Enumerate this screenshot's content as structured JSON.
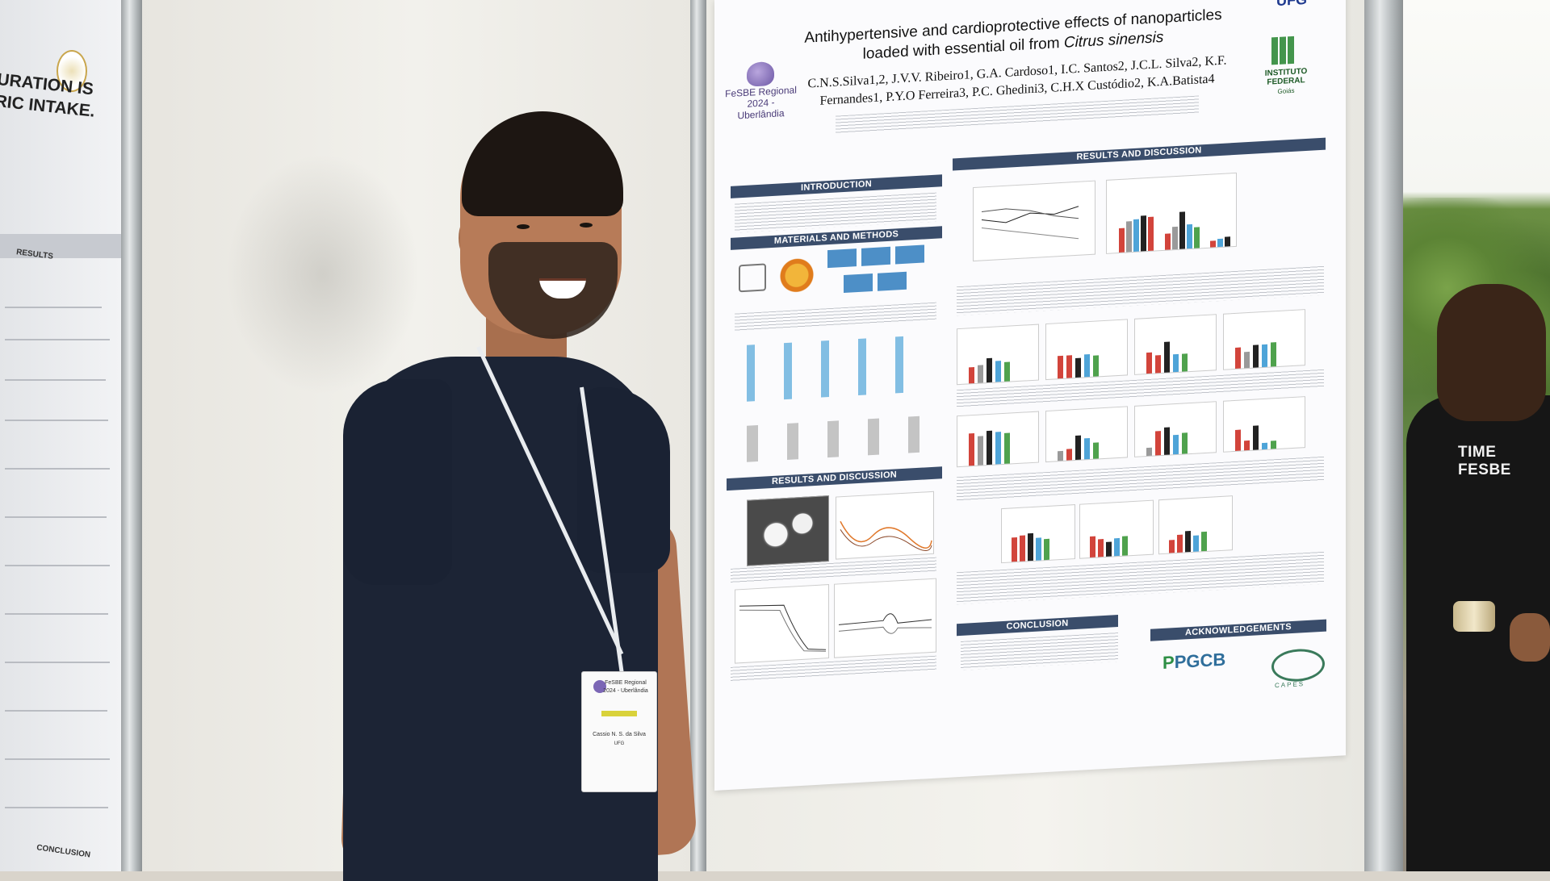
{
  "left_poster": {
    "title": "URATION IS\nRIC INTAKE.",
    "section_results": "RESULTS",
    "section_conclusion": "CONCLUSION"
  },
  "poster": {
    "title_line1": "Antihypertensive and cardioprotective effects of nanoparticles",
    "title_line2_prefix": "loaded with essential oil from ",
    "title_line2_italic": "Citrus sinensis",
    "authors_line1": "C.N.S.Silva1,2, J.V.V. Ribeiro1, G.A. Cardoso1, I.C. Santos2, J.C.L. Silva2, K.F.",
    "authors_line2": "Fernandes1, P.Y.O Ferreira3, P.C. Ghedini3, C.H.X Custódio2, K.A.Batista4",
    "event_name": "FeSBE Regional",
    "event_year_place": "2024 - Uberlândia",
    "logo_ufg": "UFG",
    "logo_if_line1": "INSTITUTO",
    "logo_if_line2": "FEDERAL",
    "logo_if_line3": "Goiás",
    "sections": {
      "introduction": "INTRODUCTION",
      "materials_methods": "MATERIALS AND METHODS",
      "results_discussion_left": "RESULTS AND DISCUSSION",
      "results_discussion_right": "RESULTS AND DISCUSSION",
      "conclusion": "CONCLUSION",
      "acknowledgements": "ACKNOWLEDGEMENTS"
    },
    "ack_logo_1_a": "P",
    "ack_logo_1_b": "PGCB",
    "ack_logo_2": "CAPES"
  },
  "badge": {
    "event_line1": "FeSBE Regional",
    "event_line2": "2024 - Uberlândia",
    "name": "Cassio N. S. da Silva",
    "affiliation": "UFG"
  },
  "shirt_text": "TIME FESBE",
  "colors": {
    "poster_header": "#3a4d6b",
    "bar_control": "#9a9a9a",
    "bar_shr": "#222222",
    "bar_red": "#d2443b",
    "bar_blue": "#4ea4d8",
    "bar_green": "#4fa24d"
  }
}
